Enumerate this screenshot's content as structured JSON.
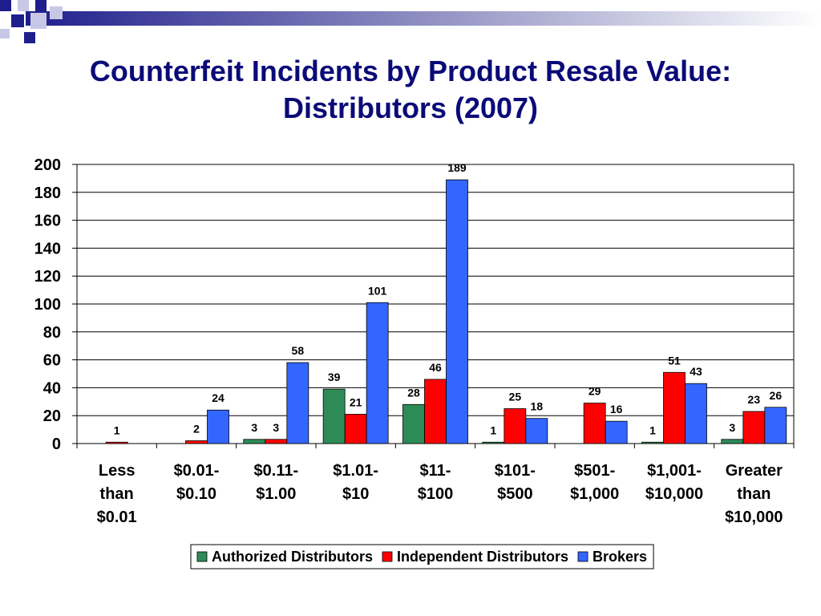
{
  "title_lines": [
    "Counterfeit Incidents by Product Resale Value:",
    "Distributors (2007)"
  ],
  "chart_data": {
    "type": "bar",
    "title": "Counterfeit Incidents by Product Resale Value: Distributors (2007)",
    "categories": [
      [
        "Less",
        "than",
        "$0.01"
      ],
      [
        "$0.01-",
        "$0.10"
      ],
      [
        "$0.11-",
        "$1.00"
      ],
      [
        "$1.01-",
        "$10"
      ],
      [
        "$11-",
        "$100"
      ],
      [
        "$101-",
        "$500"
      ],
      [
        "$501-",
        "$1,000"
      ],
      [
        "$1,001-",
        "$10,000"
      ],
      [
        "Greater",
        "than",
        "$10,000"
      ]
    ],
    "series": [
      {
        "name": "Authorized Distributors",
        "color": "#2e8b57",
        "values": [
          null,
          null,
          3,
          39,
          28,
          1,
          null,
          1,
          3
        ]
      },
      {
        "name": "Independent Distributors",
        "color": "#ff0000",
        "values": [
          1,
          2,
          3,
          21,
          46,
          25,
          29,
          51,
          23
        ]
      },
      {
        "name": "Brokers",
        "color": "#3366ff",
        "values": [
          null,
          24,
          58,
          101,
          189,
          18,
          16,
          43,
          26
        ]
      }
    ],
    "ylim": [
      0,
      200
    ],
    "yticks": [
      0,
      20,
      40,
      60,
      80,
      100,
      120,
      140,
      160,
      180,
      200
    ],
    "grid": true,
    "legend_position": "bottom"
  }
}
